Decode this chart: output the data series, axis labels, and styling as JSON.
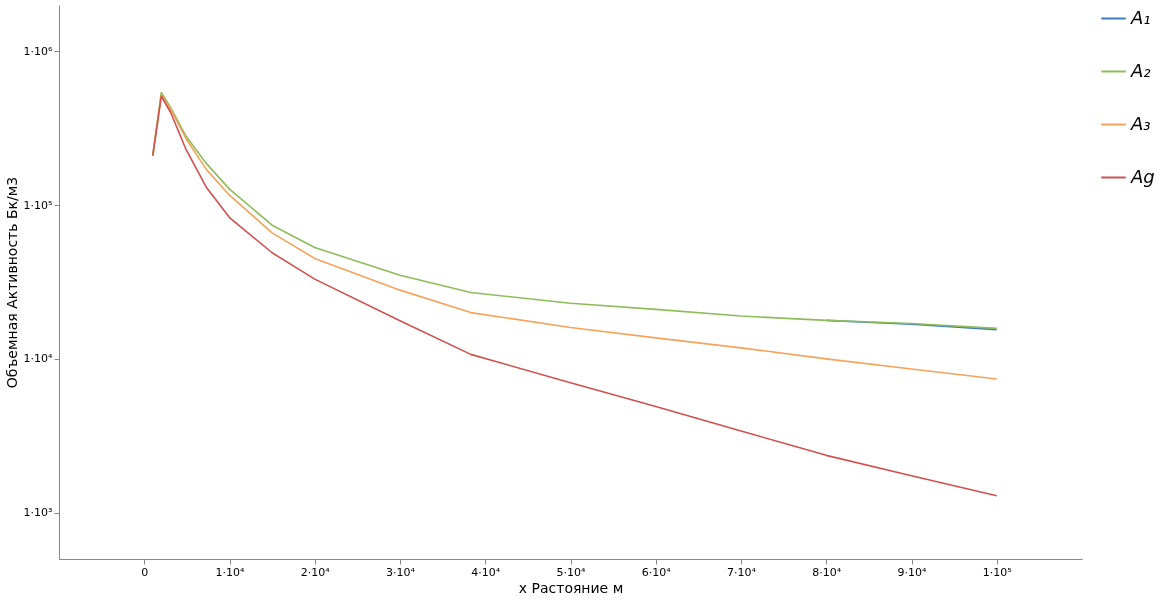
{
  "chart_data": {
    "type": "line",
    "xlabel": "x Растояние м",
    "ylabel": "Объемная Активность Бк/м3",
    "x": [
      1000,
      2000,
      3100,
      4900,
      7300,
      10000,
      15000,
      20000,
      30000,
      38300,
      50000,
      60000,
      70000,
      80000,
      90000,
      100000
    ],
    "series": [
      {
        "name": "A₁",
        "color": "#3b7ebf",
        "values": [
          null,
          null,
          null,
          null,
          null,
          null,
          null,
          null,
          null,
          null,
          null,
          null,
          null,
          17800,
          16800,
          15500
        ]
      },
      {
        "name": "A₂",
        "color": "#8fbc5a",
        "values": [
          210000,
          540000,
          430000,
          280000,
          186000,
          127000,
          74000,
          53000,
          35000,
          27000,
          23000,
          21000,
          19000,
          17800,
          17000,
          15800
        ]
      },
      {
        "name": "A₃",
        "color": "#f6a25a",
        "values": [
          210000,
          520000,
          420000,
          270000,
          170000,
          116000,
          66000,
          45000,
          28000,
          20000,
          16000,
          13700,
          11800,
          10000,
          8600,
          7400
        ]
      },
      {
        "name": "Ag",
        "color": "#d0504f",
        "values": [
          210000,
          510000,
          400000,
          230000,
          130000,
          83000,
          49000,
          33000,
          17700,
          10700,
          7000,
          4900,
          3400,
          2360,
          1740,
          1290
        ]
      }
    ],
    "log": "y",
    "xlim": [
      -10000,
      110000
    ],
    "ylim": [
      500,
      2000000
    ],
    "xticks": [
      0,
      {
        "value": 10000,
        "label": "1·10⁴"
      },
      {
        "value": 20000,
        "label": "2·10⁴"
      },
      {
        "value": 30000,
        "label": "3·10⁴"
      },
      {
        "value": 40000,
        "label": "4·10⁴"
      },
      {
        "value": 50000,
        "label": "5·10⁴"
      },
      {
        "value": 60000,
        "label": "6·10⁴"
      },
      {
        "value": 70000,
        "label": "7·10⁴"
      },
      {
        "value": 80000,
        "label": "8·10⁴"
      },
      {
        "value": 90000,
        "label": "9·10⁴"
      },
      {
        "value": 100000,
        "label": "1·10⁵"
      }
    ],
    "yticks": [
      {
        "value": 1000,
        "label": "1·10³"
      },
      {
        "value": 10000,
        "label": "1·10⁴"
      },
      {
        "value": 100000,
        "label": "1·10⁵"
      },
      {
        "value": 1000000,
        "label": "1·10⁶"
      }
    ],
    "grid": false,
    "legend": "right",
    "marker": "none",
    "line_style": "solid"
  }
}
